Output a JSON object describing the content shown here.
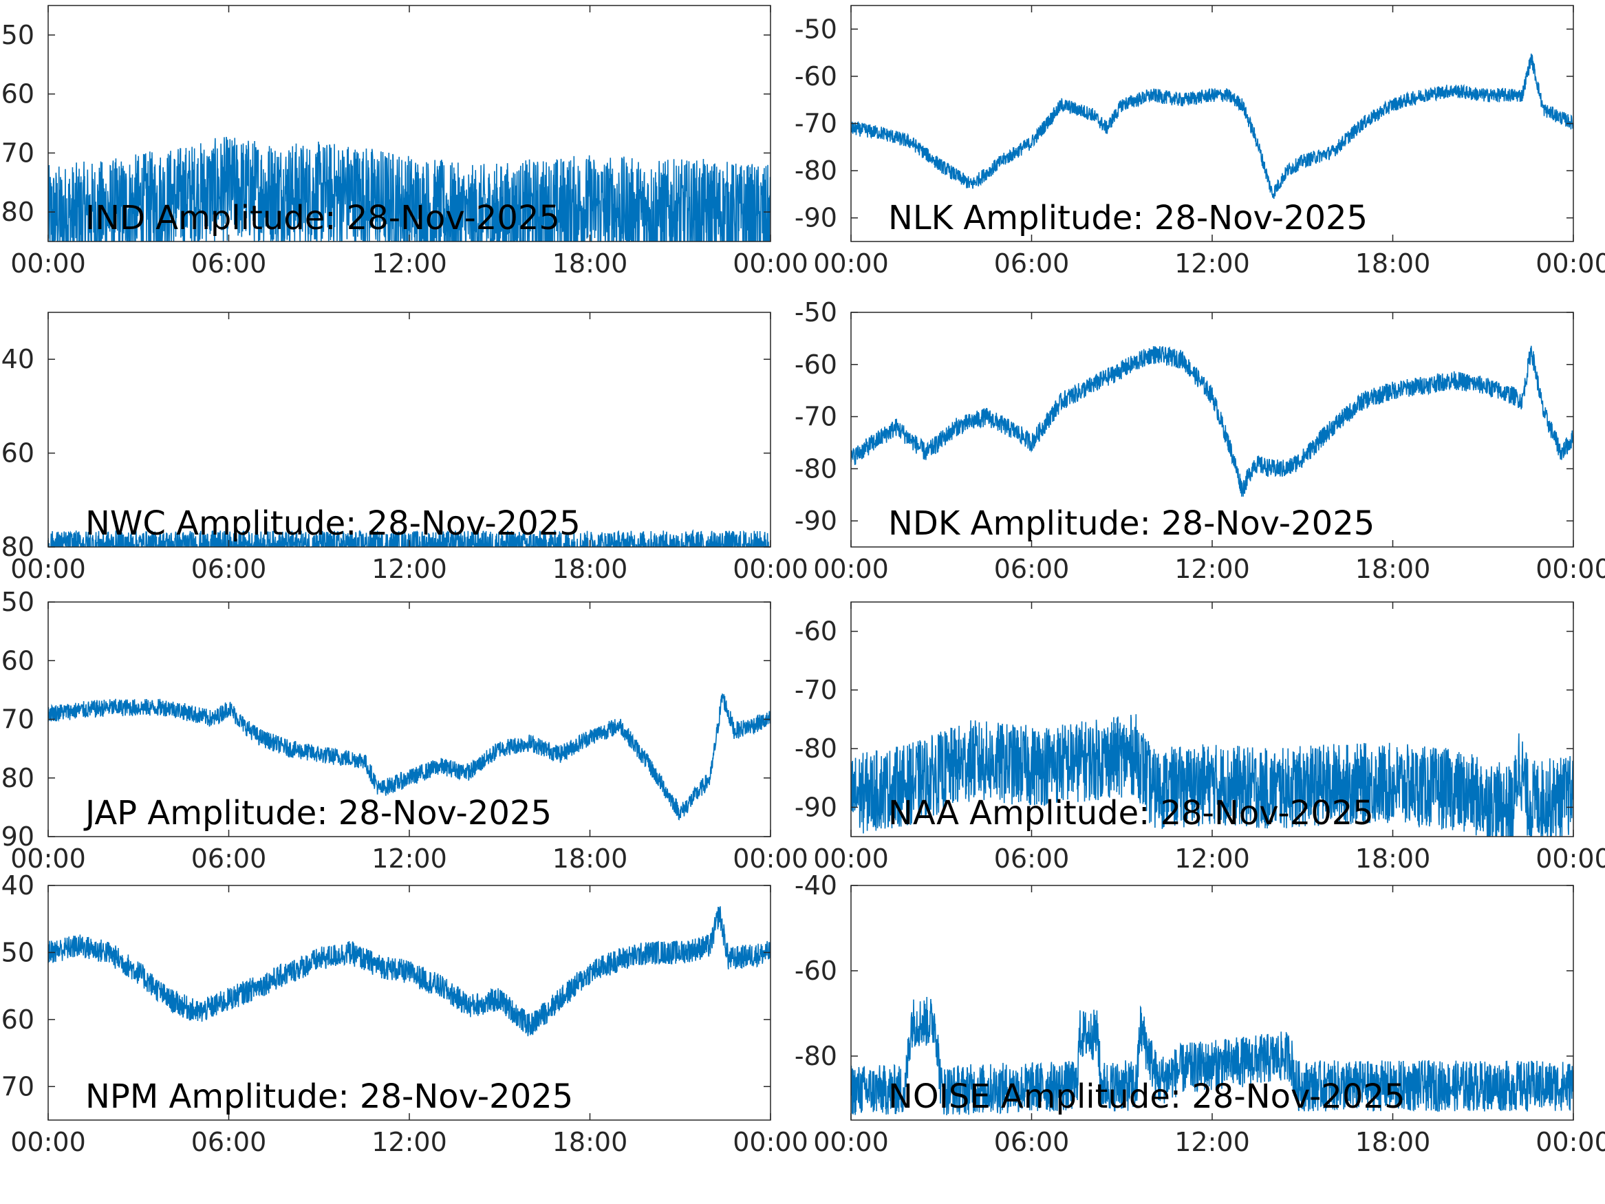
{
  "figure": {
    "line_color": "#0072BD",
    "axis_color": "#262626",
    "title_color": "#000000"
  },
  "chart_data": [
    {
      "type": "line",
      "station": "IND",
      "title": "IND Amplitude: 28-Nov-2025",
      "xlabel": "",
      "ylabel": "",
      "xticks": [
        "00:00",
        "06:00",
        "12:00",
        "18:00",
        "00:00"
      ],
      "yticks": [
        -50,
        -60,
        -70,
        -80
      ],
      "ytick_labels": [
        "50",
        "60",
        "70",
        "80"
      ],
      "ylim": [
        -85,
        -45
      ],
      "xlim_hours": [
        0,
        24
      ],
      "grid": false,
      "series": [
        {
          "name": "IND",
          "noise": 9,
          "hours": [
            0,
            2,
            4,
            6,
            8,
            10,
            12,
            14,
            16,
            18,
            20,
            22,
            24
          ],
          "values": [
            -81,
            -80,
            -78,
            -76,
            -77,
            -77,
            -79,
            -81,
            -80,
            -79,
            -80,
            -80,
            -81
          ]
        }
      ]
    },
    {
      "type": "line",
      "station": "NLK",
      "title": "NLK Amplitude: 28-Nov-2025",
      "xlabel": "",
      "ylabel": "",
      "xticks": [
        "00:00",
        "06:00",
        "12:00",
        "18:00",
        "00:00"
      ],
      "yticks": [
        -50,
        -60,
        -70,
        -80,
        -90
      ],
      "ytick_labels": [
        "-50",
        "-60",
        "-70",
        "-80",
        "-90"
      ],
      "ylim": [
        -95,
        -45
      ],
      "xlim_hours": [
        0,
        24
      ],
      "grid": false,
      "series": [
        {
          "name": "NLK",
          "noise": 1.5,
          "hours": [
            0,
            1,
            2,
            3,
            4,
            5,
            6,
            7,
            8,
            8.5,
            9,
            10,
            11,
            12,
            12.5,
            13,
            13.5,
            14,
            14.5,
            15,
            16,
            17,
            18,
            19,
            20,
            21,
            22,
            22.3,
            22.6,
            23,
            24
          ],
          "values": [
            -71,
            -72,
            -74,
            -79,
            -83,
            -78,
            -74,
            -66,
            -68,
            -71,
            -66,
            -64,
            -65,
            -64,
            -64,
            -66,
            -74,
            -85,
            -80,
            -78,
            -76,
            -70,
            -66,
            -64,
            -63,
            -64,
            -64,
            -64,
            -56,
            -67,
            -70
          ]
        }
      ]
    },
    {
      "type": "line",
      "station": "NWC",
      "title": "NWC Amplitude: 28-Nov-2025",
      "xlabel": "",
      "ylabel": "",
      "xticks": [
        "00:00",
        "06:00",
        "12:00",
        "18:00",
        "00:00"
      ],
      "yticks": [
        -40,
        -60,
        -80
      ],
      "ytick_labels": [
        "40",
        "60",
        "80"
      ],
      "ylim": [
        -80,
        -30
      ],
      "xlim_hours": [
        0,
        24
      ],
      "grid": false,
      "series": [
        {
          "name": "NWC",
          "noise": 3,
          "hours": [
            0,
            6,
            12,
            18,
            24
          ],
          "values": [
            -79.5,
            -79.5,
            -79.5,
            -79.5,
            -79.5
          ]
        }
      ]
    },
    {
      "type": "line",
      "station": "NDK",
      "title": "NDK Amplitude: 28-Nov-2025",
      "xlabel": "",
      "ylabel": "",
      "xticks": [
        "00:00",
        "06:00",
        "12:00",
        "18:00",
        "00:00"
      ],
      "yticks": [
        -50,
        -60,
        -70,
        -80,
        -90
      ],
      "ytick_labels": [
        "-50",
        "-60",
        "-70",
        "-80",
        "-90"
      ],
      "ylim": [
        -95,
        -50
      ],
      "xlim_hours": [
        0,
        24
      ],
      "grid": false,
      "series": [
        {
          "name": "NDK",
          "noise": 1.8,
          "hours": [
            0,
            1.5,
            2.5,
            3.5,
            4.5,
            5.5,
            6,
            7,
            8,
            9,
            10,
            11,
            12,
            12.6,
            13,
            13.4,
            14,
            14.5,
            15,
            16,
            17,
            18,
            19,
            20,
            21,
            22,
            22.3,
            22.6,
            23,
            23.6,
            24
          ],
          "values": [
            -78,
            -72,
            -77,
            -72,
            -70,
            -73,
            -75,
            -67,
            -64,
            -61,
            -58,
            -59,
            -66,
            -76,
            -84,
            -79,
            -80,
            -80,
            -78,
            -72,
            -67,
            -65,
            -64,
            -63,
            -64,
            -66,
            -67,
            -57,
            -69,
            -77,
            -74
          ]
        }
      ]
    },
    {
      "type": "line",
      "station": "JAP",
      "title": "JAP Amplitude: 28-Nov-2025",
      "xlabel": "",
      "ylabel": "",
      "xticks": [
        "00:00",
        "06:00",
        "12:00",
        "18:00",
        "00:00"
      ],
      "yticks": [
        -50,
        -60,
        -70,
        -80,
        -90
      ],
      "ytick_labels": [
        "50",
        "60",
        "70",
        "80",
        "90"
      ],
      "ylim": [
        -90,
        -50
      ],
      "xlim_hours": [
        0,
        24
      ],
      "grid": false,
      "series": [
        {
          "name": "JAP",
          "noise": 1.5,
          "hours": [
            0,
            2,
            4,
            5.5,
            6,
            6.5,
            7,
            8,
            9,
            10.5,
            11,
            12,
            13,
            14,
            15,
            16,
            17,
            18,
            19,
            20,
            21,
            22,
            22.4,
            22.8,
            24
          ],
          "values": [
            -69,
            -68,
            -68,
            -70,
            -68,
            -71,
            -73,
            -75,
            -76,
            -77,
            -82,
            -80,
            -78,
            -79,
            -75,
            -74,
            -76,
            -73,
            -71,
            -78,
            -86,
            -80,
            -66,
            -72,
            -70
          ]
        }
      ]
    },
    {
      "type": "line",
      "station": "NAA",
      "title": "NAA Amplitude: 28-Nov-2025",
      "xlabel": "",
      "ylabel": "",
      "xticks": [
        "00:00",
        "06:00",
        "12:00",
        "18:00",
        "00:00"
      ],
      "yticks": [
        -60,
        -70,
        -80,
        -90
      ],
      "ytick_labels": [
        "-60",
        "-70",
        "-80",
        "-90"
      ],
      "ylim": [
        -95,
        -55
      ],
      "xlim_hours": [
        0,
        24
      ],
      "grid": false,
      "series": [
        {
          "name": "NAA",
          "noise": 7,
          "hours": [
            0,
            2,
            4,
            6,
            8,
            9.5,
            10,
            12,
            14,
            16,
            18,
            20,
            22,
            22.2,
            22.5,
            24
          ],
          "values": [
            -88,
            -86,
            -82,
            -83,
            -82,
            -81,
            -87,
            -86,
            -87,
            -86,
            -86,
            -87,
            -90,
            -82,
            -89,
            -88
          ]
        }
      ]
    },
    {
      "type": "line",
      "station": "NPM",
      "title": "NPM Amplitude: 28-Nov-2025",
      "xlabel": "",
      "ylabel": "",
      "xticks": [
        "00:00",
        "06:00",
        "12:00",
        "18:00",
        "00:00"
      ],
      "yticks": [
        -40,
        -50,
        -60,
        -70
      ],
      "ytick_labels": [
        "40",
        "50",
        "60",
        "70"
      ],
      "ylim": [
        -75,
        -40
      ],
      "xlim_hours": [
        0,
        24
      ],
      "grid": false,
      "series": [
        {
          "name": "NPM",
          "noise": 1.8,
          "hours": [
            0,
            1,
            2,
            3,
            4,
            5,
            6,
            7,
            8,
            9,
            10,
            11,
            12,
            13,
            14,
            15,
            16,
            17,
            18,
            19,
            20,
            21,
            22,
            22.3,
            22.6,
            24
          ],
          "values": [
            -50,
            -49,
            -50,
            -53,
            -57,
            -59,
            -57,
            -55,
            -53,
            -51,
            -50,
            -52,
            -53,
            -55,
            -58,
            -57,
            -61,
            -57,
            -53,
            -51,
            -50,
            -50,
            -49,
            -44,
            -51,
            -50
          ]
        }
      ]
    },
    {
      "type": "line",
      "station": "NOISE",
      "title": "NOISE Amplitude: 28-Nov-2025",
      "xlabel": "",
      "ylabel": "",
      "xticks": [
        "00:00",
        "06:00",
        "12:00",
        "18:00",
        "00:00"
      ],
      "yticks": [
        -40,
        -60,
        -80
      ],
      "ytick_labels": [
        "-40",
        "-60",
        "-80"
      ],
      "ylim": [
        -95,
        -40
      ],
      "xlim_hours": [
        0,
        24
      ],
      "grid": false,
      "series": [
        {
          "name": "NOISE",
          "noise": 6,
          "hours": [
            0,
            1.8,
            2.0,
            2.8,
            3.0,
            7.5,
            7.6,
            8.2,
            8.3,
            9.5,
            9.6,
            10.2,
            11,
            14.6,
            14.8,
            24
          ],
          "values": [
            -88,
            -88,
            -72,
            -72,
            -88,
            -87,
            -75,
            -75,
            -87,
            -87,
            -73,
            -86,
            -83,
            -80,
            -87,
            -87
          ]
        }
      ]
    }
  ]
}
